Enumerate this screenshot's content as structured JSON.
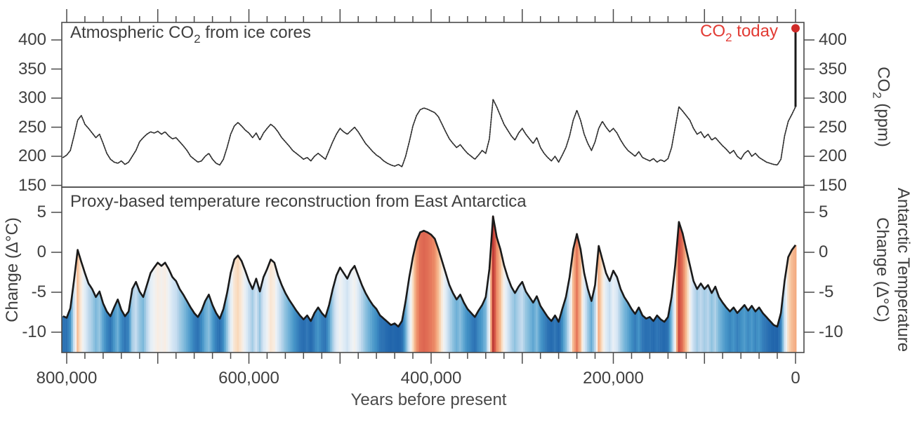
{
  "figure": {
    "top_panel_title": {
      "pre": "Atmospheric CO",
      "sub": "2",
      "post": " from ice cores"
    },
    "bottom_panel_title": "Proxy-based temperature reconstruction from East Antarctica",
    "co2_today_label": {
      "pre": "CO",
      "sub": "2",
      "post": " today"
    },
    "right_axis_top_title": {
      "pre": "CO",
      "sub": "2",
      "post": " (ppm)"
    },
    "left_axis_bottom_title": "Change (Δ°C)",
    "right_axis_bottom_title_line1": "Antarctic Temperature",
    "right_axis_bottom_title_line2": "Change (Δ°C)",
    "x_axis_title_cropped": "Years before present",
    "colors": {
      "accent_red": "#e23b34",
      "dot_red": "#cf2b28",
      "temp_line": "#1a1a1a",
      "co2_line": "#2d2d2d",
      "axis": "#4a4a4a",
      "text": "#3f3f3f"
    }
  },
  "chart_data": {
    "type": "line",
    "title": "Atmospheric CO2 from ice cores / Proxy-based temperature reconstruction from East Antarctica",
    "x_axis": {
      "direction": "age decreases left to right",
      "units": "years before present",
      "range_ka": [
        806,
        -9
      ],
      "minor_tick_step_ka": 20,
      "major_tick_step_ka": 100,
      "label_ticks": [
        {
          "age_ka": 800,
          "label": "800,000"
        },
        {
          "age_ka": 600,
          "label": "600,000"
        },
        {
          "age_ka": 400,
          "label": "400,000"
        },
        {
          "age_ka": 200,
          "label": "200,000"
        },
        {
          "age_ka": 0,
          "label": "0"
        }
      ]
    },
    "co2_axis": {
      "units": "ppm",
      "ticks": [
        400,
        350,
        300,
        250,
        200,
        150
      ],
      "range": [
        150,
        430
      ]
    },
    "temp_axis": {
      "units": "Δ°C",
      "ticks": [
        5,
        0,
        -5,
        -10
      ],
      "range": [
        -12.5,
        8
      ]
    },
    "series": {
      "age_start_ka": 804,
      "age_step_ka": -4,
      "co2_ppm": [
        198,
        202,
        210,
        235,
        262,
        270,
        255,
        248,
        240,
        232,
        238,
        222,
        205,
        195,
        190,
        188,
        192,
        186,
        190,
        200,
        210,
        225,
        232,
        238,
        242,
        240,
        243,
        238,
        242,
        235,
        230,
        232,
        225,
        218,
        210,
        200,
        195,
        190,
        192,
        200,
        205,
        195,
        188,
        185,
        195,
        215,
        238,
        252,
        258,
        252,
        245,
        240,
        232,
        240,
        228,
        240,
        248,
        255,
        250,
        242,
        232,
        225,
        218,
        210,
        205,
        200,
        195,
        198,
        192,
        200,
        205,
        200,
        195,
        210,
        225,
        238,
        248,
        242,
        238,
        244,
        250,
        242,
        232,
        222,
        215,
        208,
        202,
        198,
        192,
        188,
        185,
        183,
        186,
        182,
        200,
        225,
        252,
        270,
        280,
        283,
        281,
        278,
        275,
        268,
        255,
        242,
        230,
        222,
        215,
        220,
        212,
        205,
        200,
        195,
        202,
        210,
        205,
        230,
        298,
        285,
        270,
        255,
        245,
        235,
        228,
        240,
        248,
        238,
        230,
        222,
        232,
        215,
        205,
        198,
        192,
        200,
        190,
        202,
        215,
        235,
        262,
        279,
        262,
        238,
        222,
        210,
        225,
        248,
        260,
        250,
        242,
        248,
        240,
        228,
        218,
        210,
        205,
        200,
        208,
        198,
        195,
        192,
        196,
        190,
        194,
        191,
        196,
        215,
        250,
        285,
        278,
        270,
        262,
        248,
        238,
        242,
        232,
        238,
        228,
        232,
        225,
        218,
        212,
        205,
        210,
        200,
        195,
        205,
        210,
        200,
        205,
        198,
        194,
        190,
        188,
        186,
        185,
        195,
        235,
        260,
        272,
        285
      ],
      "temp_anomaly_c": [
        -8.0,
        -8.2,
        -7.0,
        -3.5,
        0.3,
        -1.2,
        -2.6,
        -3.9,
        -4.6,
        -5.6,
        -4.9,
        -6.4,
        -7.4,
        -8.0,
        -6.9,
        -5.9,
        -7.2,
        -8.0,
        -7.4,
        -4.6,
        -3.7,
        -4.9,
        -5.6,
        -4.1,
        -2.6,
        -1.9,
        -1.3,
        -1.7,
        -1.3,
        -2.1,
        -3.1,
        -3.6,
        -4.6,
        -5.3,
        -6.1,
        -6.9,
        -7.6,
        -8.1,
        -7.3,
        -6.1,
        -5.3,
        -6.6,
        -7.6,
        -8.3,
        -7.1,
        -5.1,
        -2.6,
        -0.9,
        -0.4,
        -1.1,
        -2.3,
        -3.6,
        -4.6,
        -3.3,
        -4.9,
        -3.1,
        -2.1,
        -0.9,
        -1.3,
        -2.9,
        -4.1,
        -5.1,
        -5.9,
        -6.6,
        -7.3,
        -7.9,
        -8.4,
        -7.9,
        -8.6,
        -7.6,
        -6.9,
        -7.6,
        -8.1,
        -6.6,
        -4.6,
        -2.9,
        -1.9,
        -2.6,
        -3.3,
        -2.3,
        -1.7,
        -2.9,
        -4.1,
        -5.1,
        -5.9,
        -6.6,
        -7.1,
        -7.9,
        -8.3,
        -8.7,
        -9.1,
        -8.9,
        -9.3,
        -8.6,
        -6.1,
        -3.1,
        -0.6,
        1.4,
        2.5,
        2.7,
        2.5,
        2.2,
        1.7,
        0.4,
        -1.1,
        -2.6,
        -4.1,
        -5.1,
        -5.9,
        -5.3,
        -6.3,
        -7.1,
        -7.6,
        -8.1,
        -7.3,
        -6.6,
        -5.6,
        -2.1,
        4.5,
        1.9,
        0.4,
        -1.6,
        -3.1,
        -4.3,
        -5.1,
        -4.3,
        -3.7,
        -4.9,
        -5.6,
        -6.3,
        -5.5,
        -6.7,
        -7.4,
        -8.1,
        -8.6,
        -7.9,
        -8.7,
        -7.1,
        -5.6,
        -3.1,
        0.4,
        2.3,
        0.4,
        -2.6,
        -4.6,
        -6.1,
        -4.1,
        0.8,
        -0.9,
        -2.6,
        -3.6,
        -2.3,
        -3.1,
        -4.6,
        -5.6,
        -6.3,
        -7.1,
        -7.7,
        -6.9,
        -7.9,
        -8.3,
        -8.1,
        -8.6,
        -7.9,
        -8.4,
        -8.7,
        -8.1,
        -5.6,
        -1.6,
        3.8,
        2.4,
        0.4,
        -1.6,
        -3.6,
        -4.6,
        -3.9,
        -4.6,
        -4.1,
        -5.1,
        -4.3,
        -5.6,
        -6.3,
        -6.9,
        -7.4,
        -6.9,
        -7.6,
        -7.1,
        -6.6,
        -7.3,
        -6.7,
        -7.4,
        -6.9,
        -7.6,
        -8.1,
        -8.6,
        -9.1,
        -9.3,
        -7.6,
        -3.6,
        -0.6,
        0.3,
        0.9
      ]
    },
    "co2_today": {
      "age_ka": 0,
      "value_ppm": 420
    },
    "temp_color_scale": [
      [
        -12.5,
        "#1653a0"
      ],
      [
        -9,
        "#2166ac"
      ],
      [
        -8,
        "#2e74b5"
      ],
      [
        -7,
        "#4292c6"
      ],
      [
        -6,
        "#6baed6"
      ],
      [
        -5,
        "#93c4e0"
      ],
      [
        -4,
        "#bdd7ec"
      ],
      [
        -3,
        "#d9e8f5"
      ],
      [
        -2,
        "#eef2f5"
      ],
      [
        -1.2,
        "#f9ece0"
      ],
      [
        -0.5,
        "#f9dcc0"
      ],
      [
        0,
        "#f7c6a0"
      ],
      [
        1,
        "#f3a87e"
      ],
      [
        2,
        "#e98160"
      ],
      [
        3,
        "#d85b4a"
      ],
      [
        4,
        "#cb433b"
      ],
      [
        5,
        "#ac2f2e"
      ]
    ],
    "legend_position": "none",
    "grid": false
  }
}
